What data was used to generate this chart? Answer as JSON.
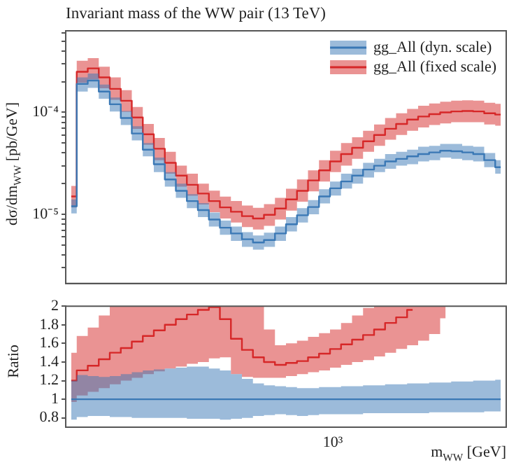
{
  "chart_data": [
    {
      "type": "step",
      "title": "Invariant mass of the WW pair (13 TeV)",
      "ylabel": "dσ/dm$_{WW}$ [pb/GeV]",
      "log": "y",
      "legend": "top right",
      "tick_labels": "y",
      "categories": [
        null,
        null,
        null,
        null,
        null,
        null,
        null,
        null,
        null,
        null,
        null,
        null,
        null,
        null,
        null,
        null,
        null,
        null,
        null,
        null,
        null,
        null,
        null,
        null,
        null,
        null,
        null,
        null,
        null,
        null,
        null,
        null,
        null,
        null,
        null,
        null,
        null,
        null,
        null,
        null
      ],
      "ylim": [
        2.1e-06,
        0.00063
      ],
      "yticks": [
        {
          "value": 3e-06,
          "label": null
        },
        {
          "value": 4e-06,
          "label": null
        },
        {
          "value": 5e-06,
          "label": null
        },
        {
          "value": 6e-06,
          "label": null
        },
        {
          "value": 7e-06,
          "label": null
        },
        {
          "value": 8e-06,
          "label": null
        },
        {
          "value": 9e-06,
          "label": null
        },
        {
          "value": 1e-05,
          "label": "10⁻⁵"
        },
        {
          "value": 2e-05,
          "label": null
        },
        {
          "value": 3e-05,
          "label": null
        },
        {
          "value": 4e-05,
          "label": null
        },
        {
          "value": 5e-05,
          "label": null
        },
        {
          "value": 6e-05,
          "label": null
        },
        {
          "value": 7e-05,
          "label": null
        },
        {
          "value": 8e-05,
          "label": null
        },
        {
          "value": 9e-05,
          "label": null
        },
        {
          "value": 0.0001,
          "label": "10⁻⁴"
        },
        {
          "value": 0.0002,
          "label": null
        },
        {
          "value": 0.0003,
          "label": null
        },
        {
          "value": 0.0004,
          "label": null
        },
        {
          "value": 0.0005,
          "label": null
        },
        {
          "value": 0.0006,
          "label": null
        }
      ],
      "series": [
        {
          "name": "gg_All (dyn. scale)",
          "color": "#3a78b5",
          "values": [
            1.2e-05,
            0.00019,
            0.000205,
            0.00016,
            0.00012,
            8.8e-05,
            6.2e-05,
            4.3e-05,
            3.1e-05,
            2.2e-05,
            1.7e-05,
            1.35e-05,
            1.1e-05,
            8.9e-06,
            7.4e-06,
            6.5e-06,
            5.7e-06,
            5.3e-06,
            5.6e-06,
            6.5e-06,
            8e-06,
            9.8e-06,
            1.18e-05,
            1.5e-05,
            1.8e-05,
            2.1e-05,
            2.4e-05,
            2.75e-05,
            3e-05,
            3.3e-05,
            3.5e-05,
            3.7e-05,
            3.9e-05,
            4.05e-05,
            4.2e-05,
            4.15e-05,
            4.05e-05,
            3.9e-05,
            3.4e-05,
            2.9e-05
          ],
          "lower": [
            1.02e-05,
            0.00016,
            0.000174,
            0.000136,
            0.000102,
            7.5e-05,
            5.3e-05,
            3.7e-05,
            2.6e-05,
            1.87e-05,
            1.45e-05,
            1.15e-05,
            9.4e-06,
            7.6e-06,
            6.3e-06,
            5.5e-06,
            4.8e-06,
            4.5e-06,
            4.8e-06,
            5.5e-06,
            6.8e-06,
            8.3e-06,
            1e-05,
            1.28e-05,
            1.53e-05,
            1.79e-05,
            2e-05,
            2.3e-05,
            2.6e-05,
            2.8e-05,
            3e-05,
            3.1e-05,
            3.3e-05,
            3.4e-05,
            3.6e-05,
            3.5e-05,
            3.4e-05,
            3.3e-05,
            2.9e-05,
            2.5e-05
          ],
          "upper": [
            1.4e-05,
            0.00022,
            0.00024,
            0.000187,
            0.00014,
            0.000103,
            7.3e-05,
            5e-05,
            3.6e-05,
            2.6e-05,
            2e-05,
            1.58e-05,
            1.29e-05,
            1.04e-05,
            8.7e-06,
            7.6e-06,
            6.7e-06,
            6.2e-06,
            6.6e-06,
            7.6e-06,
            9.4e-06,
            1.15e-05,
            1.38e-05,
            1.76e-05,
            2.1e-05,
            2.5e-05,
            2.8e-05,
            3.2e-05,
            3.5e-05,
            3.9e-05,
            4.1e-05,
            4.3e-05,
            4.6e-05,
            4.7e-05,
            4.9e-05,
            4.9e-05,
            4.7e-05,
            4.6e-05,
            4e-05,
            3.4e-05
          ]
        },
        {
          "name": "gg_All (fixed scale)",
          "color": "#d62728",
          "values": [
            1.5e-05,
            0.00025,
            0.00027,
            0.00022,
            0.00017,
            0.00013,
            8.9e-05,
            6.1e-05,
            4.4e-05,
            3.2e-05,
            2.4e-05,
            1.95e-05,
            1.6e-05,
            1.35e-05,
            1.17e-05,
            1.06e-05,
            9.6e-06,
            9.1e-06,
            9.9e-06,
            1.14e-05,
            1.4e-05,
            1.7e-05,
            2.15e-05,
            2.7e-05,
            3.3e-05,
            3.9e-05,
            4.5e-05,
            5.2e-05,
            6e-05,
            6.9e-05,
            7.7e-05,
            8.5e-05,
            9.1e-05,
            9.6e-05,
            0.0001,
            0.000102,
            0.000103,
            0.000102,
            9.8e-05,
            9.5e-05
          ],
          "lower": [
            1.17e-05,
            0.000195,
            0.00021,
            0.000172,
            0.000133,
            0.000101,
            6.9e-05,
            4.8e-05,
            3.4e-05,
            2.5e-05,
            1.87e-05,
            1.52e-05,
            1.25e-05,
            1.05e-05,
            9.1e-06,
            8.3e-06,
            7.5e-06,
            7.1e-06,
            7.7e-06,
            8.9e-06,
            1.09e-05,
            1.33e-05,
            1.68e-05,
            2.1e-05,
            2.6e-05,
            3e-05,
            3.5e-05,
            4.1e-05,
            4.7e-05,
            5.4e-05,
            6e-05,
            6.6e-05,
            7.1e-05,
            7.5e-05,
            7.8e-05,
            8e-05,
            8e-05,
            8e-05,
            7.6e-05,
            7.4e-05
          ],
          "upper": [
            1.9e-05,
            0.00032,
            0.00034,
            0.00028,
            0.00022,
            0.000165,
            0.000113,
            7.7e-05,
            5.6e-05,
            4.1e-05,
            3e-05,
            2.5e-05,
            2e-05,
            1.71e-05,
            1.49e-05,
            1.35e-05,
            1.22e-05,
            1.16e-05,
            1.26e-05,
            1.45e-05,
            1.78e-05,
            2.2e-05,
            2.7e-05,
            3.4e-05,
            4.2e-05,
            5e-05,
            5.7e-05,
            6.6e-05,
            7.6e-05,
            8.8e-05,
            9.8e-05,
            0.000108,
            0.000116,
            0.000122,
            0.000127,
            0.00013,
            0.000131,
            0.00013,
            0.000124,
            0.000121
          ]
        }
      ]
    },
    {
      "type": "step",
      "ylabel": "Ratio",
      "xlabel": "m$_{WW}$ [GeV]",
      "tick_labels": "y",
      "annotations": [
        "10³"
      ],
      "categories": [
        null,
        null,
        null,
        null,
        null,
        null,
        null,
        null,
        null,
        null,
        null,
        null,
        null,
        null,
        null,
        null,
        null,
        null,
        null,
        null,
        null,
        null,
        null,
        null,
        null,
        null,
        null,
        null,
        null,
        null,
        null,
        null,
        null,
        null,
        null,
        null,
        null,
        null,
        null,
        null
      ],
      "ylim": [
        0.7,
        2
      ],
      "yticks": [
        0.8,
        1,
        1.2,
        1.4,
        1.6,
        1.8,
        2
      ],
      "series": [
        {
          "color": "#3a78b5",
          "values": [
            1,
            1,
            1,
            1,
            1,
            1,
            1,
            1,
            1,
            1,
            1,
            1,
            1,
            1,
            1,
            1,
            1,
            1,
            1,
            1,
            1,
            1,
            1,
            1,
            1,
            1,
            1,
            1,
            1,
            1,
            1,
            1,
            1,
            1,
            1,
            1,
            1,
            1,
            1,
            1
          ],
          "lower": [
            0.78,
            0.81,
            0.82,
            0.82,
            0.81,
            0.81,
            0.8,
            0.8,
            0.8,
            0.8,
            0.8,
            0.79,
            0.79,
            0.79,
            0.78,
            0.79,
            0.8,
            0.82,
            0.83,
            0.84,
            0.83,
            0.82,
            0.83,
            0.84,
            0.84,
            0.84,
            0.84,
            0.85,
            0.85,
            0.85,
            0.85,
            0.85,
            0.85,
            0.86,
            0.86,
            0.86,
            0.86,
            0.86,
            0.87,
            0.87
          ],
          "upper": [
            1.2,
            1.26,
            1.25,
            1.24,
            1.25,
            1.27,
            1.29,
            1.31,
            1.32,
            1.33,
            1.34,
            1.35,
            1.35,
            1.33,
            1.31,
            1.27,
            1.22,
            1.17,
            1.15,
            1.14,
            1.13,
            1.12,
            1.12,
            1.13,
            1.13,
            1.14,
            1.14,
            1.15,
            1.15,
            1.16,
            1.16,
            1.17,
            1.17,
            1.18,
            1.18,
            1.19,
            1.19,
            1.2,
            1.2,
            1.21
          ]
        },
        {
          "color": "#d62728",
          "values": [
            1.2,
            1.31,
            1.36,
            1.43,
            1.5,
            1.55,
            1.62,
            1.68,
            1.74,
            1.8,
            1.86,
            1.91,
            1.96,
            1.99,
            1.86,
            1.65,
            1.53,
            1.45,
            1.4,
            1.37,
            1.39,
            1.41,
            1.45,
            1.49,
            1.54,
            1.59,
            1.64,
            1.69,
            1.75,
            1.82,
            1.88,
            1.96,
            null,
            null,
            null,
            null,
            null,
            null,
            null,
            null
          ],
          "lower": [
            0.97,
            1.04,
            1.08,
            1.12,
            1.16,
            1.2,
            1.23,
            1.27,
            1.3,
            1.33,
            1.35,
            1.38,
            1.4,
            1.44,
            1.45,
            1.27,
            1.24,
            1.23,
            1.23,
            1.23,
            1.25,
            1.27,
            1.29,
            1.31,
            1.34,
            1.37,
            1.4,
            1.42,
            1.46,
            1.5,
            1.54,
            1.58,
            1.63,
            1.7,
            1.87,
            null,
            null,
            null,
            null,
            null
          ],
          "upper": [
            1.5,
            1.68,
            1.77,
            1.9,
            2,
            2,
            2,
            2,
            2,
            2,
            2,
            2,
            2,
            2,
            2,
            2,
            2,
            2,
            1.75,
            1.58,
            1.6,
            1.63,
            1.67,
            1.71,
            1.75,
            1.82,
            1.9,
            1.98,
            2,
            2,
            2,
            2,
            2,
            2,
            2,
            null,
            null,
            null,
            null,
            null
          ]
        }
      ]
    }
  ]
}
